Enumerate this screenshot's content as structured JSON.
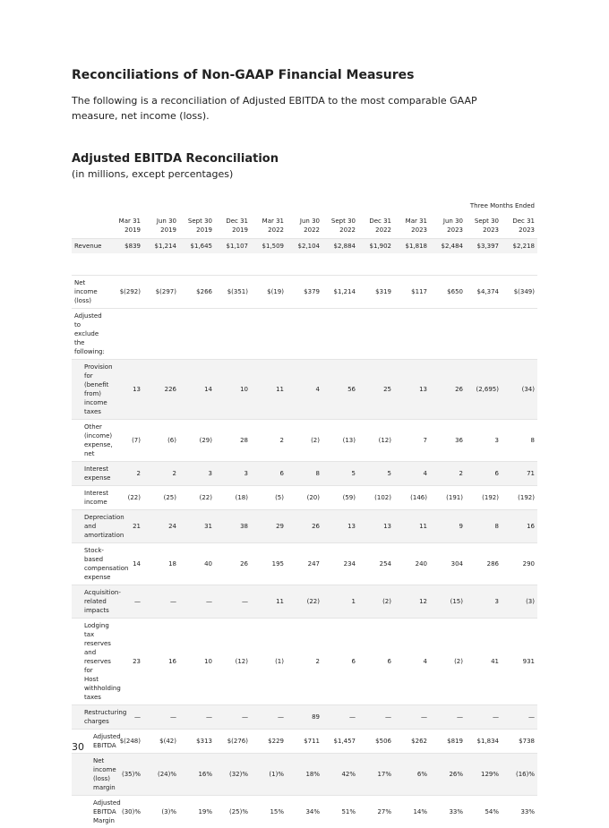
{
  "header": {
    "title": "Reconciliations of Non-GAAP Financial Measures",
    "intro": "The following is a reconciliation of Adjusted EBITDA to the most comparable GAAP measure, net income (loss)."
  },
  "section": {
    "title": "Adjusted EBITDA Reconciliation",
    "subtitle": "(in millions, except percentages)"
  },
  "table": {
    "group_header": "Three Months Ended",
    "columns": [
      {
        "period": "Mar 31",
        "year": "2019"
      },
      {
        "period": "Jun 30",
        "year": "2019"
      },
      {
        "period": "Sept 30",
        "year": "2019"
      },
      {
        "period": "Dec 31",
        "year": "2019"
      },
      {
        "period": "Mar 31",
        "year": "2022"
      },
      {
        "period": "Jun 30",
        "year": "2022"
      },
      {
        "period": "Sept 30",
        "year": "2022"
      },
      {
        "period": "Dec 31",
        "year": "2022"
      },
      {
        "period": "Mar 31",
        "year": "2023"
      },
      {
        "period": "Jun 30",
        "year": "2023"
      },
      {
        "period": "Sept 30",
        "year": "2023"
      },
      {
        "period": "Dec 31",
        "year": "2023"
      }
    ],
    "rows": [
      {
        "label": "Revenue",
        "values": [
          "$839",
          "$1,214",
          "$1,645",
          "$1,107",
          "$1,509",
          "$2,104",
          "$2,884",
          "$1,902",
          "$1,818",
          "$2,484",
          "$3,397",
          "$2,218"
        ]
      },
      {
        "label": "Net income (loss)",
        "values": [
          "$(292)",
          "$(297)",
          "$266",
          "$(351)",
          "$(19)",
          "$379",
          "$1,214",
          "$319",
          "$117",
          "$650",
          "$4,374",
          "$(349)"
        ]
      },
      {
        "label": "Adjusted to exclude the following:",
        "values": []
      },
      {
        "label": "Provision for (benefit from) income taxes",
        "values": [
          "13",
          "226",
          "14",
          "10",
          "11",
          "4",
          "56",
          "25",
          "13",
          "26",
          "(2,695)",
          "(34)"
        ]
      },
      {
        "label": "Other (income) expense, net",
        "values": [
          "(7)",
          "(6)",
          "(29)",
          "28",
          "2",
          "(2)",
          "(13)",
          "(12)",
          "7",
          "36",
          "3",
          "8"
        ]
      },
      {
        "label": "Interest expense",
        "values": [
          "2",
          "2",
          "3",
          "3",
          "6",
          "8",
          "5",
          "5",
          "4",
          "2",
          "6",
          "71"
        ]
      },
      {
        "label": "Interest income",
        "values": [
          "(22)",
          "(25)",
          "(22)",
          "(18)",
          "(5)",
          "(20)",
          "(59)",
          "(102)",
          "(146)",
          "(191)",
          "(192)",
          "(192)"
        ]
      },
      {
        "label": "Depreciation and amortization",
        "values": [
          "21",
          "24",
          "31",
          "38",
          "29",
          "26",
          "13",
          "13",
          "11",
          "9",
          "8",
          "16"
        ]
      },
      {
        "label": "Stock-based compensation expense",
        "values": [
          "14",
          "18",
          "40",
          "26",
          "195",
          "247",
          "234",
          "254",
          "240",
          "304",
          "286",
          "290"
        ]
      },
      {
        "label": "Acquisition-related impacts",
        "values": [
          "—",
          "—",
          "—",
          "—",
          "11",
          "(22)",
          "1",
          "(2)",
          "12",
          "(15)",
          "3",
          "(3)"
        ]
      },
      {
        "label": "Lodging tax reserves and reserves for Host withholding taxes",
        "values": [
          "23",
          "16",
          "10",
          "(12)",
          "(1)",
          "2",
          "6",
          "6",
          "4",
          "(2)",
          "41",
          "931"
        ]
      },
      {
        "label": "Restructuring charges",
        "values": [
          "—",
          "—",
          "—",
          "—",
          "—",
          "89",
          "—",
          "—",
          "—",
          "—",
          "—",
          "—"
        ]
      },
      {
        "label": "Adjusted EBITDA",
        "values": [
          "$(248)",
          "$(42)",
          "$313",
          "$(276)",
          "$229",
          "$711",
          "$1,457",
          "$506",
          "$262",
          "$819",
          "$1,834",
          "$738"
        ]
      },
      {
        "label": "Net income (loss) margin",
        "values": [
          "(35)%",
          "(24)%",
          "16%",
          "(32)%",
          "(1)%",
          "18%",
          "42%",
          "17%",
          "6%",
          "26%",
          "129%",
          "(16)%"
        ]
      },
      {
        "label": "Adjusted EBITDA Margin",
        "values": [
          "(30)%",
          "(3)%",
          "19%",
          "(25)%",
          "15%",
          "34%",
          "51%",
          "27%",
          "14%",
          "33%",
          "54%",
          "33%"
        ]
      }
    ]
  },
  "footer": {
    "page_number": "30"
  }
}
